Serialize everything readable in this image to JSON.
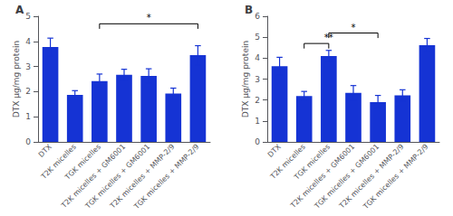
{
  "chart_data": [
    {
      "type": "bar",
      "title": "A",
      "categories": [
        "DTX",
        "T2K micelles",
        "TGK micelles",
        "T2K micelles + GM6001",
        "TGK micelles + GM6001",
        "T2K micelles + MMP-2/9",
        "TGK micelles + MMP-2/9"
      ],
      "values": [
        3.78,
        1.87,
        2.42,
        2.67,
        2.63,
        1.92,
        3.45
      ],
      "errors": [
        0.35,
        0.17,
        0.28,
        0.22,
        0.28,
        0.22,
        0.38
      ],
      "ylim": [
        0,
        5
      ],
      "yticks": [
        0,
        1,
        2,
        3,
        4,
        5
      ],
      "ylabel": "DTX μg/mg protein",
      "color": "#1533d4",
      "grid": false,
      "annotations": [
        {
          "text": "*",
          "from": "TGK micelles",
          "to": "TGK micelles + MMP-2/9",
          "y": 4.7
        }
      ]
    },
    {
      "type": "bar",
      "title": "B",
      "categories": [
        "DTX",
        "T2K micelles",
        "TGK micelles",
        "T2K micelles + GM6001",
        "TGK micelles + GM6001",
        "T2K micelles + MMP-2/9",
        "TGK micelles + MMP-2/9"
      ],
      "values": [
        3.62,
        2.19,
        4.1,
        2.34,
        1.9,
        2.22,
        4.62
      ],
      "errors": [
        0.42,
        0.22,
        0.27,
        0.35,
        0.32,
        0.27,
        0.32
      ],
      "ylim": [
        0,
        6
      ],
      "yticks": [
        0,
        1,
        2,
        3,
        4,
        5,
        6
      ],
      "ylabel": "DTX μg/mg protein",
      "color": "#1533d4",
      "grid": false,
      "annotations": [
        {
          "text": "**",
          "from": "T2K micelles",
          "to": "TGK micelles",
          "y": 4.7
        },
        {
          "text": "*",
          "from": "TGK micelles",
          "to": "TGK micelles + GM6001",
          "y": 5.2
        }
      ]
    }
  ]
}
